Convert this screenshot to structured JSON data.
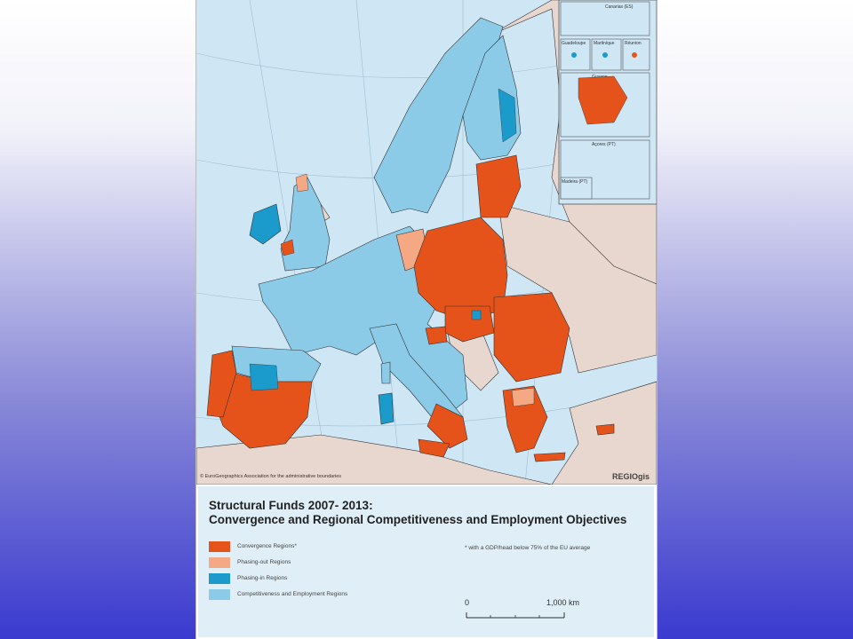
{
  "map": {
    "colors": {
      "sea": "#cfe6f4",
      "non_eu_land": "#e8d7cf",
      "convergence": "#e5531b",
      "phasing_out": "#f4a883",
      "phasing_in": "#1a9bcc",
      "competitiveness": "#8ccbe8",
      "border": "#333333"
    },
    "insets": [
      {
        "label": "Canarias (ES)"
      },
      {
        "label": "Guadeloupe"
      },
      {
        "label": "Martinique"
      },
      {
        "label": "Réunion"
      },
      {
        "label": "Guyane"
      },
      {
        "label": "Açores (PT)"
      },
      {
        "label": "Madeira (PT)"
      }
    ],
    "credit": "© EuroGeographics Association for the administrative boundaries",
    "brand": "REGIOgis"
  },
  "legend": {
    "title_line1": "Structural Funds 2007- 2013:",
    "title_line2": "Convergence and Regional Competitiveness and Employment Objectives",
    "items": [
      {
        "label": "Convergence Regions*",
        "color": "#e5531b"
      },
      {
        "label": "Phasing-out Regions",
        "color": "#f4a883"
      },
      {
        "label": "Phasing-in Regions",
        "color": "#1a9bcc"
      },
      {
        "label": "Competitiveness and Employment Regions",
        "color": "#8ccbe8"
      }
    ],
    "footnote": "* with a GDP/head below 75% of the EU average",
    "scale": {
      "start": "0",
      "end": "1,000 km"
    }
  }
}
